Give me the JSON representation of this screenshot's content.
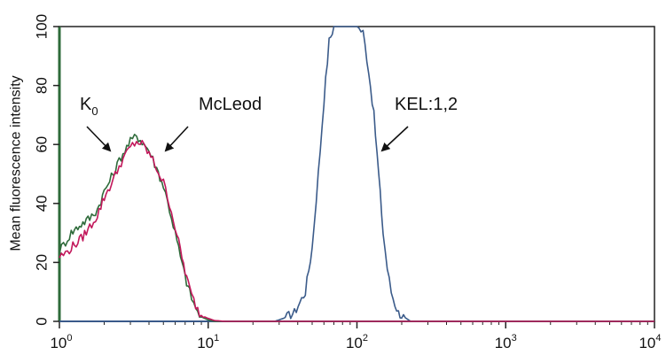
{
  "chart_data": {
    "type": "line",
    "title": "",
    "xlabel": "",
    "ylabel": "Mean fluorescence intensity",
    "xscale": "log",
    "xlim": [
      1,
      10000
    ],
    "ylim": [
      0,
      100
    ],
    "grid": false,
    "legend": "none",
    "x_ticks": [
      {
        "base": "10",
        "exp": "0",
        "value": 1
      },
      {
        "base": "10",
        "exp": "1",
        "value": 10
      },
      {
        "base": "10",
        "exp": "2",
        "value": 100
      },
      {
        "base": "10",
        "exp": "3",
        "value": 1000
      },
      {
        "base": "10",
        "exp": "4",
        "value": 10000
      }
    ],
    "y_ticks": [
      "0",
      "20",
      "40",
      "60",
      "80",
      "100"
    ],
    "annotations": [
      {
        "main": "K",
        "sub": "0",
        "target_series": 1
      },
      {
        "main": "McLeod",
        "sub": "",
        "target_series": 2
      },
      {
        "main": "KEL:1,2",
        "sub": "",
        "target_series": 0
      }
    ],
    "series": [
      {
        "color": "#3b5b8a",
        "x": [
          1,
          20,
          28,
          32,
          38,
          45,
          50,
          55,
          60,
          65,
          70,
          75,
          80,
          90,
          100,
          110,
          120,
          130,
          140,
          150,
          160,
          170,
          180,
          190,
          200,
          230,
          300,
          10000
        ],
        "y": [
          0,
          0,
          0,
          1,
          3,
          10,
          25,
          50,
          75,
          95,
          100,
          100,
          100,
          100,
          100,
          98,
          85,
          70,
          50,
          30,
          18,
          10,
          6,
          3,
          2,
          0,
          0,
          0
        ]
      },
      {
        "color": "#2e6b3a",
        "x": [
          1,
          1.1,
          1.2,
          1.4,
          1.6,
          1.8,
          2.0,
          2.3,
          2.6,
          3.0,
          3.3,
          3.6,
          4.0,
          4.5,
          5.0,
          5.5,
          6.0,
          6.5,
          7.0,
          7.5,
          8.0,
          8.5,
          9.0,
          10,
          11,
          13,
          10000
        ],
        "y": [
          24,
          27,
          30,
          33,
          35,
          38,
          44,
          50,
          56,
          61,
          63,
          61,
          58,
          52,
          46,
          38,
          30,
          22,
          15,
          10,
          6,
          3,
          1.5,
          0.5,
          0,
          0,
          0
        ]
      },
      {
        "color": "#c2185b",
        "x": [
          1,
          1.1,
          1.2,
          1.4,
          1.6,
          1.8,
          2.0,
          2.3,
          2.6,
          3.0,
          3.3,
          3.6,
          4.0,
          4.5,
          5.0,
          5.5,
          6.0,
          6.5,
          7.0,
          7.5,
          8.0,
          8.5,
          9.0,
          10,
          11,
          13,
          10000
        ],
        "y": [
          22,
          23,
          25,
          28,
          32,
          36,
          42,
          48,
          54,
          59,
          61,
          60,
          57,
          52,
          47,
          40,
          32,
          24,
          17,
          11,
          7,
          4,
          2,
          1,
          0.3,
          0,
          0
        ]
      }
    ]
  }
}
